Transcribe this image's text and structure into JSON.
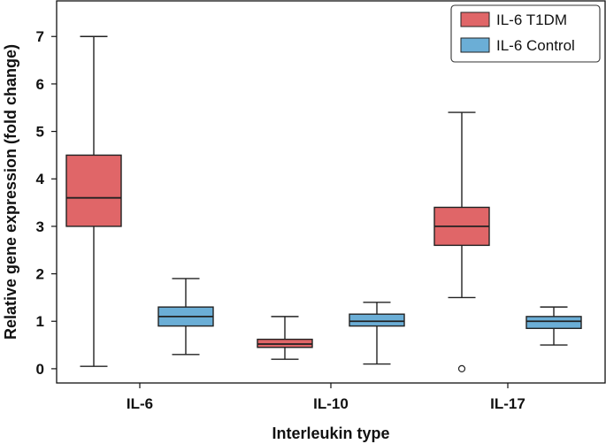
{
  "chart_data": {
    "type": "box",
    "xlabel": "Interleukin type",
    "ylabel": "Relative gene expression (fold change)",
    "categories": [
      "IL-6",
      "IL-10",
      "IL-17"
    ],
    "yticks": [
      "0",
      "1",
      "2",
      "3",
      "4",
      "5",
      "6",
      "7"
    ],
    "ylim": [
      -0.3,
      7.75
    ],
    "grid": false,
    "legend_position": "top-right",
    "series": [
      {
        "name": "IL-6 T1DM",
        "color": "#e06668",
        "boxes": [
          {
            "whisker_low": 0.05,
            "q1": 3.0,
            "median": 3.6,
            "q3": 4.5,
            "whisker_high": 7.0,
            "outliers": []
          },
          {
            "whisker_low": 0.2,
            "q1": 0.45,
            "median": 0.52,
            "q3": 0.62,
            "whisker_high": 1.1,
            "outliers": []
          },
          {
            "whisker_low": 1.5,
            "q1": 2.6,
            "median": 3.0,
            "q3": 3.4,
            "whisker_high": 5.4,
            "outliers": [
              0.0
            ]
          }
        ]
      },
      {
        "name": "IL-6 Control",
        "color": "#6baed6",
        "boxes": [
          {
            "whisker_low": 0.3,
            "q1": 0.9,
            "median": 1.1,
            "q3": 1.3,
            "whisker_high": 1.9,
            "outliers": []
          },
          {
            "whisker_low": 0.1,
            "q1": 0.9,
            "median": 1.0,
            "q3": 1.15,
            "whisker_high": 1.4,
            "outliers": []
          },
          {
            "whisker_low": 0.5,
            "q1": 0.85,
            "median": 1.0,
            "q3": 1.1,
            "whisker_high": 1.3,
            "outliers": []
          }
        ]
      }
    ]
  }
}
